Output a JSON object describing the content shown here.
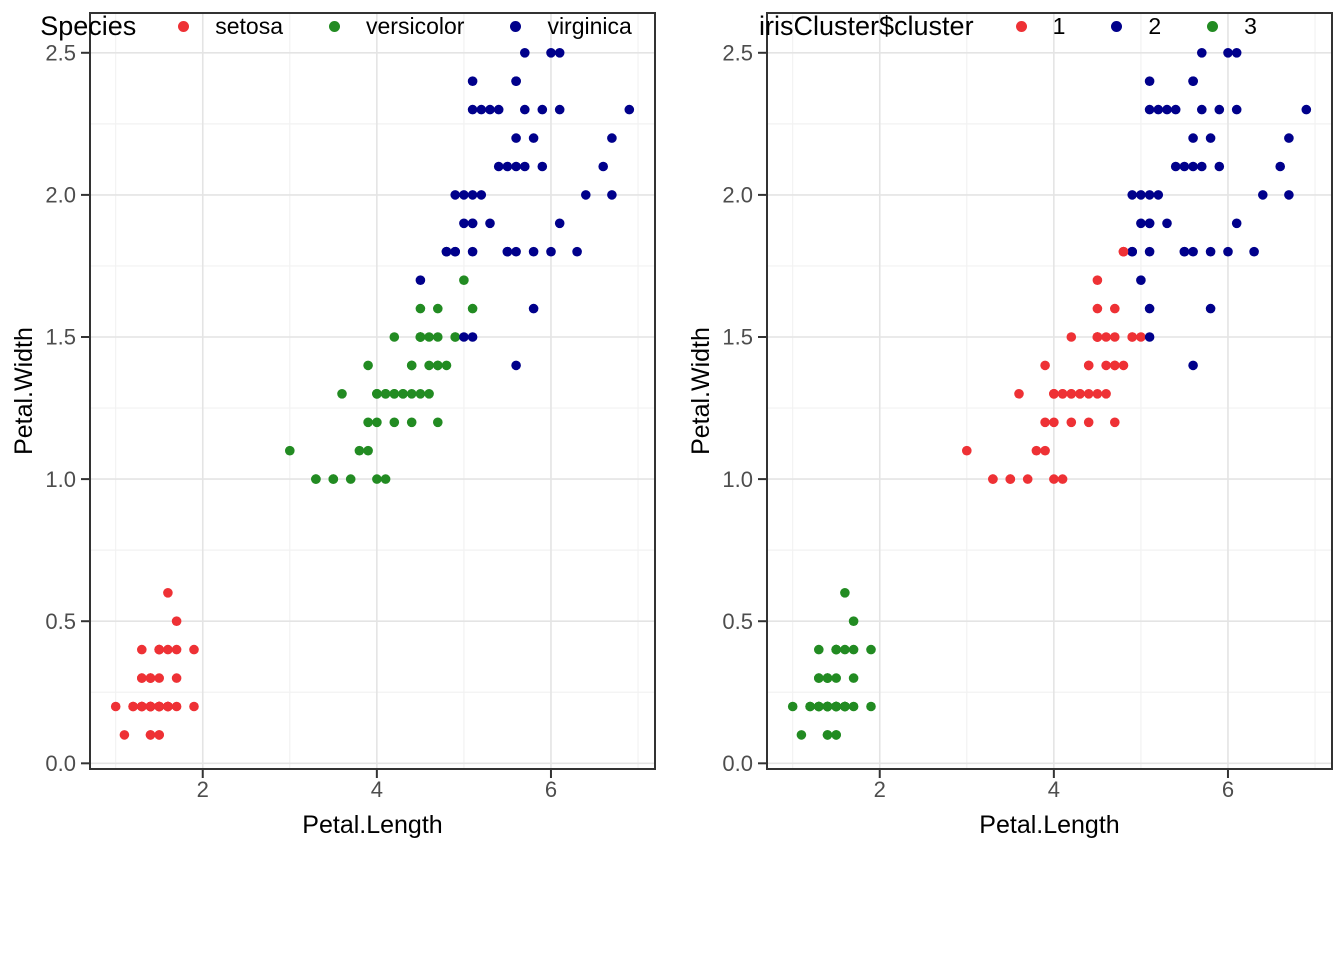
{
  "theme": {
    "background": "#FFFFFF",
    "grid_major_color": "#E4E4E4",
    "grid_minor_color": "#F2F2F2",
    "panel_border_color": "#333333",
    "tick_color": "#333333",
    "tick_label_color": "#4D4D4D",
    "axis_title_color": "#000000"
  },
  "legends": {
    "species": {
      "title": "Species",
      "entries": [
        {
          "label": "setosa",
          "color": "#EE3135"
        },
        {
          "label": "versicolor",
          "color": "#228B22"
        },
        {
          "label": "virginica",
          "color": "#00008B"
        }
      ]
    },
    "cluster": {
      "title": "irisCluster$cluster",
      "entries": [
        {
          "label": "1",
          "color": "#EE3135"
        },
        {
          "label": "2",
          "color": "#00008B"
        },
        {
          "label": "3",
          "color": "#228B22"
        }
      ]
    }
  },
  "chart_data": {
    "type": "scatter",
    "title": "",
    "xlabel": "Petal.Length",
    "ylabel": "Petal.Width",
    "xlim": [
      0.705,
      7.195
    ],
    "ylim": [
      -0.02,
      2.64
    ],
    "x_ticks": [
      2,
      4,
      6
    ],
    "x_minor_gridlines": [
      1,
      3,
      5,
      7
    ],
    "y_ticks": [
      0.0,
      0.5,
      1.0,
      1.5,
      2.0,
      2.5
    ],
    "y_minor_gridlines": [
      0.25,
      0.75,
      1.25,
      1.75,
      2.25
    ],
    "grid": "on",
    "legend_position": "bottom",
    "point_columns": [
      "Petal.Length",
      "Petal.Width",
      "Species",
      "irisCluster$cluster"
    ],
    "panels": [
      {
        "name": "by-species",
        "color_key": "Species",
        "color_map": {
          "setosa": "#EE3135",
          "versicolor": "#228B22",
          "virginica": "#00008B"
        }
      },
      {
        "name": "by-cluster",
        "color_key": "cluster",
        "color_map": {
          "1": "#EE3135",
          "2": "#00008B",
          "3": "#228B22"
        }
      }
    ],
    "points": [
      [
        1.4,
        0.2,
        "setosa",
        3
      ],
      [
        1.4,
        0.2,
        "setosa",
        3
      ],
      [
        1.3,
        0.2,
        "setosa",
        3
      ],
      [
        1.5,
        0.2,
        "setosa",
        3
      ],
      [
        1.4,
        0.2,
        "setosa",
        3
      ],
      [
        1.7,
        0.4,
        "setosa",
        3
      ],
      [
        1.4,
        0.3,
        "setosa",
        3
      ],
      [
        1.5,
        0.2,
        "setosa",
        3
      ],
      [
        1.4,
        0.2,
        "setosa",
        3
      ],
      [
        1.5,
        0.1,
        "setosa",
        3
      ],
      [
        1.5,
        0.2,
        "setosa",
        3
      ],
      [
        1.6,
        0.2,
        "setosa",
        3
      ],
      [
        1.4,
        0.1,
        "setosa",
        3
      ],
      [
        1.1,
        0.1,
        "setosa",
        3
      ],
      [
        1.2,
        0.2,
        "setosa",
        3
      ],
      [
        1.5,
        0.4,
        "setosa",
        3
      ],
      [
        1.3,
        0.4,
        "setosa",
        3
      ],
      [
        1.4,
        0.3,
        "setosa",
        3
      ],
      [
        1.7,
        0.3,
        "setosa",
        3
      ],
      [
        1.5,
        0.3,
        "setosa",
        3
      ],
      [
        1.7,
        0.2,
        "setosa",
        3
      ],
      [
        1.5,
        0.4,
        "setosa",
        3
      ],
      [
        1.0,
        0.2,
        "setosa",
        3
      ],
      [
        1.7,
        0.5,
        "setosa",
        3
      ],
      [
        1.9,
        0.2,
        "setosa",
        3
      ],
      [
        1.6,
        0.2,
        "setosa",
        3
      ],
      [
        1.6,
        0.4,
        "setosa",
        3
      ],
      [
        1.5,
        0.2,
        "setosa",
        3
      ],
      [
        1.4,
        0.2,
        "setosa",
        3
      ],
      [
        1.6,
        0.2,
        "setosa",
        3
      ],
      [
        1.6,
        0.2,
        "setosa",
        3
      ],
      [
        1.5,
        0.4,
        "setosa",
        3
      ],
      [
        1.5,
        0.1,
        "setosa",
        3
      ],
      [
        1.4,
        0.2,
        "setosa",
        3
      ],
      [
        1.5,
        0.2,
        "setosa",
        3
      ],
      [
        1.2,
        0.2,
        "setosa",
        3
      ],
      [
        1.3,
        0.2,
        "setosa",
        3
      ],
      [
        1.4,
        0.1,
        "setosa",
        3
      ],
      [
        1.3,
        0.2,
        "setosa",
        3
      ],
      [
        1.5,
        0.2,
        "setosa",
        3
      ],
      [
        1.3,
        0.3,
        "setosa",
        3
      ],
      [
        1.3,
        0.3,
        "setosa",
        3
      ],
      [
        1.3,
        0.2,
        "setosa",
        3
      ],
      [
        1.6,
        0.6,
        "setosa",
        3
      ],
      [
        1.9,
        0.4,
        "setosa",
        3
      ],
      [
        1.4,
        0.3,
        "setosa",
        3
      ],
      [
        1.6,
        0.2,
        "setosa",
        3
      ],
      [
        1.4,
        0.2,
        "setosa",
        3
      ],
      [
        1.5,
        0.2,
        "setosa",
        3
      ],
      [
        1.4,
        0.2,
        "setosa",
        3
      ],
      [
        4.7,
        1.4,
        "versicolor",
        1
      ],
      [
        4.5,
        1.5,
        "versicolor",
        1
      ],
      [
        4.9,
        1.5,
        "versicolor",
        1
      ],
      [
        4.0,
        1.3,
        "versicolor",
        1
      ],
      [
        4.6,
        1.5,
        "versicolor",
        1
      ],
      [
        4.5,
        1.3,
        "versicolor",
        1
      ],
      [
        4.7,
        1.6,
        "versicolor",
        1
      ],
      [
        3.3,
        1.0,
        "versicolor",
        1
      ],
      [
        4.6,
        1.3,
        "versicolor",
        1
      ],
      [
        3.9,
        1.4,
        "versicolor",
        1
      ],
      [
        3.5,
        1.0,
        "versicolor",
        1
      ],
      [
        4.2,
        1.5,
        "versicolor",
        1
      ],
      [
        4.0,
        1.0,
        "versicolor",
        1
      ],
      [
        4.7,
        1.4,
        "versicolor",
        1
      ],
      [
        3.6,
        1.3,
        "versicolor",
        1
      ],
      [
        4.4,
        1.4,
        "versicolor",
        1
      ],
      [
        4.5,
        1.5,
        "versicolor",
        1
      ],
      [
        4.1,
        1.0,
        "versicolor",
        1
      ],
      [
        4.5,
        1.5,
        "versicolor",
        1
      ],
      [
        3.9,
        1.1,
        "versicolor",
        1
      ],
      [
        4.8,
        1.8,
        "versicolor",
        1
      ],
      [
        4.0,
        1.3,
        "versicolor",
        1
      ],
      [
        4.9,
        1.5,
        "versicolor",
        1
      ],
      [
        4.7,
        1.2,
        "versicolor",
        1
      ],
      [
        4.3,
        1.3,
        "versicolor",
        1
      ],
      [
        4.4,
        1.4,
        "versicolor",
        1
      ],
      [
        4.8,
        1.4,
        "versicolor",
        1
      ],
      [
        5.0,
        1.7,
        "versicolor",
        2
      ],
      [
        4.5,
        1.5,
        "versicolor",
        1
      ],
      [
        3.5,
        1.0,
        "versicolor",
        1
      ],
      [
        3.8,
        1.1,
        "versicolor",
        1
      ],
      [
        3.7,
        1.0,
        "versicolor",
        1
      ],
      [
        3.9,
        1.2,
        "versicolor",
        1
      ],
      [
        5.1,
        1.6,
        "versicolor",
        2
      ],
      [
        4.5,
        1.5,
        "versicolor",
        1
      ],
      [
        4.5,
        1.6,
        "versicolor",
        1
      ],
      [
        4.7,
        1.5,
        "versicolor",
        1
      ],
      [
        4.4,
        1.3,
        "versicolor",
        1
      ],
      [
        4.1,
        1.3,
        "versicolor",
        1
      ],
      [
        4.0,
        1.3,
        "versicolor",
        1
      ],
      [
        4.4,
        1.2,
        "versicolor",
        1
      ],
      [
        4.6,
        1.4,
        "versicolor",
        1
      ],
      [
        4.0,
        1.2,
        "versicolor",
        1
      ],
      [
        3.3,
        1.0,
        "versicolor",
        1
      ],
      [
        4.2,
        1.3,
        "versicolor",
        1
      ],
      [
        4.2,
        1.2,
        "versicolor",
        1
      ],
      [
        4.2,
        1.3,
        "versicolor",
        1
      ],
      [
        4.3,
        1.3,
        "versicolor",
        1
      ],
      [
        3.0,
        1.1,
        "versicolor",
        1
      ],
      [
        4.1,
        1.3,
        "versicolor",
        1
      ],
      [
        6.0,
        2.5,
        "virginica",
        2
      ],
      [
        5.1,
        1.9,
        "virginica",
        2
      ],
      [
        5.9,
        2.1,
        "virginica",
        2
      ],
      [
        5.6,
        1.8,
        "virginica",
        2
      ],
      [
        5.8,
        2.2,
        "virginica",
        2
      ],
      [
        6.6,
        2.1,
        "virginica",
        2
      ],
      [
        4.5,
        1.7,
        "virginica",
        1
      ],
      [
        6.3,
        1.8,
        "virginica",
        2
      ],
      [
        5.8,
        1.8,
        "virginica",
        2
      ],
      [
        6.1,
        2.5,
        "virginica",
        2
      ],
      [
        5.1,
        2.0,
        "virginica",
        2
      ],
      [
        5.3,
        1.9,
        "virginica",
        2
      ],
      [
        5.5,
        2.1,
        "virginica",
        2
      ],
      [
        5.0,
        2.0,
        "virginica",
        2
      ],
      [
        5.1,
        2.4,
        "virginica",
        2
      ],
      [
        5.3,
        2.3,
        "virginica",
        2
      ],
      [
        5.5,
        1.8,
        "virginica",
        2
      ],
      [
        6.7,
        2.2,
        "virginica",
        2
      ],
      [
        6.9,
        2.3,
        "virginica",
        2
      ],
      [
        5.0,
        1.5,
        "virginica",
        1
      ],
      [
        5.7,
        2.3,
        "virginica",
        2
      ],
      [
        4.9,
        2.0,
        "virginica",
        2
      ],
      [
        6.7,
        2.0,
        "virginica",
        2
      ],
      [
        4.9,
        1.8,
        "virginica",
        2
      ],
      [
        5.7,
        2.1,
        "virginica",
        2
      ],
      [
        6.0,
        1.8,
        "virginica",
        2
      ],
      [
        4.8,
        1.8,
        "virginica",
        1
      ],
      [
        4.9,
        1.8,
        "virginica",
        2
      ],
      [
        5.6,
        2.1,
        "virginica",
        2
      ],
      [
        5.8,
        1.6,
        "virginica",
        2
      ],
      [
        6.1,
        1.9,
        "virginica",
        2
      ],
      [
        6.4,
        2.0,
        "virginica",
        2
      ],
      [
        5.6,
        2.2,
        "virginica",
        2
      ],
      [
        5.1,
        1.5,
        "virginica",
        2
      ],
      [
        5.6,
        1.4,
        "virginica",
        2
      ],
      [
        6.1,
        2.3,
        "virginica",
        2
      ],
      [
        5.6,
        2.4,
        "virginica",
        2
      ],
      [
        5.5,
        1.8,
        "virginica",
        2
      ],
      [
        4.8,
        1.8,
        "virginica",
        1
      ],
      [
        5.4,
        2.1,
        "virginica",
        2
      ],
      [
        5.6,
        2.4,
        "virginica",
        2
      ],
      [
        5.1,
        2.3,
        "virginica",
        2
      ],
      [
        5.1,
        1.9,
        "virginica",
        2
      ],
      [
        5.9,
        2.3,
        "virginica",
        2
      ],
      [
        5.7,
        2.5,
        "virginica",
        2
      ],
      [
        5.2,
        2.3,
        "virginica",
        2
      ],
      [
        5.0,
        1.9,
        "virginica",
        2
      ],
      [
        5.2,
        2.0,
        "virginica",
        2
      ],
      [
        5.4,
        2.3,
        "virginica",
        2
      ],
      [
        5.1,
        1.8,
        "virginica",
        2
      ]
    ]
  }
}
